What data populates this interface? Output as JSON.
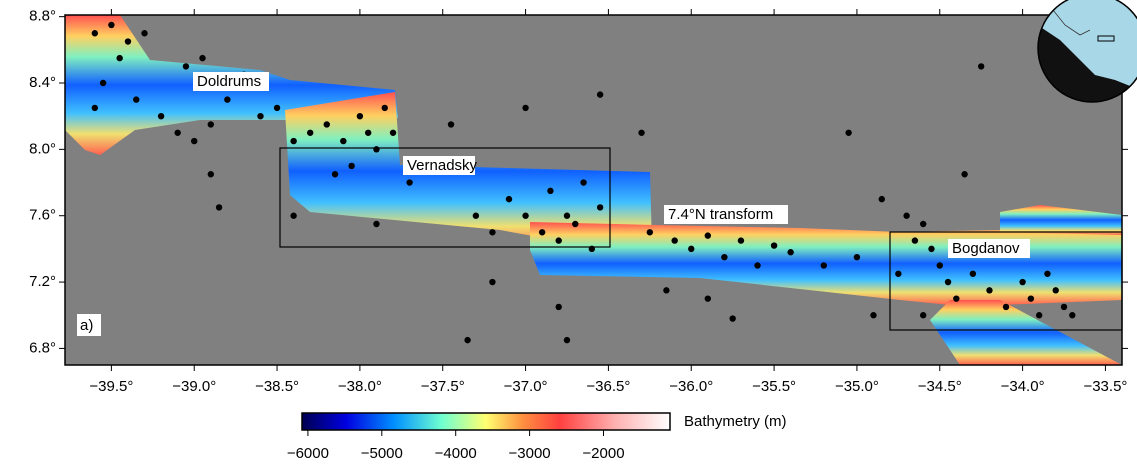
{
  "map": {
    "xlim": [
      -39.78,
      -33.4
    ],
    "ylim": [
      6.7,
      8.81
    ],
    "xticks": [
      {
        "value": -39.5,
        "label": "−39.5°"
      },
      {
        "value": -39.0,
        "label": "−39.0°"
      },
      {
        "value": -38.5,
        "label": "−38.5°"
      },
      {
        "value": -38.0,
        "label": "−38.0°"
      },
      {
        "value": -37.5,
        "label": "−37.5°"
      },
      {
        "value": -37.0,
        "label": "−37.0°"
      },
      {
        "value": -36.5,
        "label": "−36.5°"
      },
      {
        "value": -36.0,
        "label": "−36.0°"
      },
      {
        "value": -35.5,
        "label": "−35.5°"
      },
      {
        "value": -35.0,
        "label": "−35.0°"
      },
      {
        "value": -34.5,
        "label": "−34.5°"
      },
      {
        "value": -34.0,
        "label": "−34.0°"
      },
      {
        "value": -33.5,
        "label": "−33.5°"
      }
    ],
    "yticks": [
      {
        "value": 6.8,
        "label": "6.8°"
      },
      {
        "value": 7.2,
        "label": "7.2°"
      },
      {
        "value": 7.6,
        "label": "7.6°"
      },
      {
        "value": 8.0,
        "label": "8.0°"
      },
      {
        "value": 8.4,
        "label": "8.4°"
      },
      {
        "value": 8.8,
        "label": "8.8°"
      }
    ],
    "panel_label": "a)",
    "features": [
      "Doldrums",
      "Vernadsky",
      "7.4°N transform",
      "Bogdanov"
    ],
    "events": [
      [
        -39.6,
        8.7
      ],
      [
        -39.5,
        8.75
      ],
      [
        -39.4,
        8.65
      ],
      [
        -39.3,
        8.7
      ],
      [
        -39.45,
        8.55
      ],
      [
        -39.55,
        8.4
      ],
      [
        -39.35,
        8.3
      ],
      [
        -39.6,
        8.25
      ],
      [
        -39.2,
        8.2
      ],
      [
        -39.1,
        8.1
      ],
      [
        -39.0,
        8.05
      ],
      [
        -38.9,
        8.15
      ],
      [
        -39.05,
        8.5
      ],
      [
        -38.95,
        8.55
      ],
      [
        -38.8,
        8.3
      ],
      [
        -38.6,
        8.2
      ],
      [
        -38.7,
        8.45
      ],
      [
        -38.5,
        8.25
      ],
      [
        -38.4,
        8.05
      ],
      [
        -38.3,
        8.1
      ],
      [
        -38.2,
        8.15
      ],
      [
        -38.1,
        8.05
      ],
      [
        -38.0,
        8.2
      ],
      [
        -37.95,
        8.1
      ],
      [
        -37.9,
        8.0
      ],
      [
        -38.05,
        7.9
      ],
      [
        -37.85,
        8.25
      ],
      [
        -37.8,
        8.1
      ],
      [
        -38.15,
        7.85
      ],
      [
        -37.7,
        7.8
      ],
      [
        -38.9,
        7.85
      ],
      [
        -38.85,
        7.65
      ],
      [
        -38.4,
        7.6
      ],
      [
        -37.9,
        7.55
      ],
      [
        -37.45,
        8.15
      ],
      [
        -37.3,
        7.6
      ],
      [
        -37.2,
        7.5
      ],
      [
        -37.1,
        7.7
      ],
      [
        -37.0,
        7.6
      ],
      [
        -36.9,
        7.5
      ],
      [
        -36.85,
        7.75
      ],
      [
        -36.8,
        7.45
      ],
      [
        -36.75,
        7.6
      ],
      [
        -36.7,
        7.55
      ],
      [
        -36.65,
        7.8
      ],
      [
        -36.6,
        7.4
      ],
      [
        -36.55,
        7.65
      ],
      [
        -37.0,
        8.25
      ],
      [
        -36.55,
        8.33
      ],
      [
        -36.3,
        8.1
      ],
      [
        -36.25,
        7.5
      ],
      [
        -36.1,
        7.45
      ],
      [
        -36.0,
        7.4
      ],
      [
        -35.9,
        7.48
      ],
      [
        -35.8,
        7.35
      ],
      [
        -35.7,
        7.45
      ],
      [
        -35.6,
        7.3
      ],
      [
        -35.5,
        7.42
      ],
      [
        -35.4,
        7.38
      ],
      [
        -35.9,
        7.1
      ],
      [
        -35.75,
        6.98
      ],
      [
        -36.15,
        7.15
      ],
      [
        -36.8,
        7.05
      ],
      [
        -36.75,
        6.85
      ],
      [
        -37.35,
        6.85
      ],
      [
        -37.2,
        7.2
      ],
      [
        -35.2,
        7.3
      ],
      [
        -35.0,
        7.35
      ],
      [
        -34.85,
        7.7
      ],
      [
        -34.7,
        7.6
      ],
      [
        -34.65,
        7.45
      ],
      [
        -34.55,
        7.4
      ],
      [
        -34.5,
        7.3
      ],
      [
        -34.45,
        7.2
      ],
      [
        -34.4,
        7.1
      ],
      [
        -34.3,
        7.25
      ],
      [
        -34.2,
        7.15
      ],
      [
        -34.1,
        7.05
      ],
      [
        -34.0,
        7.2
      ],
      [
        -33.95,
        7.1
      ],
      [
        -33.9,
        7.0
      ],
      [
        -33.85,
        7.25
      ],
      [
        -33.8,
        7.15
      ],
      [
        -33.75,
        7.05
      ],
      [
        -34.25,
        8.5
      ],
      [
        -34.35,
        7.85
      ],
      [
        -34.6,
        7.0
      ],
      [
        -34.9,
        7.0
      ],
      [
        -35.05,
        8.1
      ],
      [
        -33.7,
        7.0
      ],
      [
        -34.75,
        7.25
      ],
      [
        -34.6,
        7.55
      ]
    ]
  },
  "colorbar": {
    "label": "Bathymetry (m)",
    "lim": [
      -6080,
      -1100
    ],
    "ticks": [
      {
        "value": -6000,
        "label": "−6000"
      },
      {
        "value": -5000,
        "label": "−5000"
      },
      {
        "value": -4000,
        "label": "−4000"
      },
      {
        "value": -3000,
        "label": "−3000"
      },
      {
        "value": -2000,
        "label": "−2000"
      }
    ]
  }
}
